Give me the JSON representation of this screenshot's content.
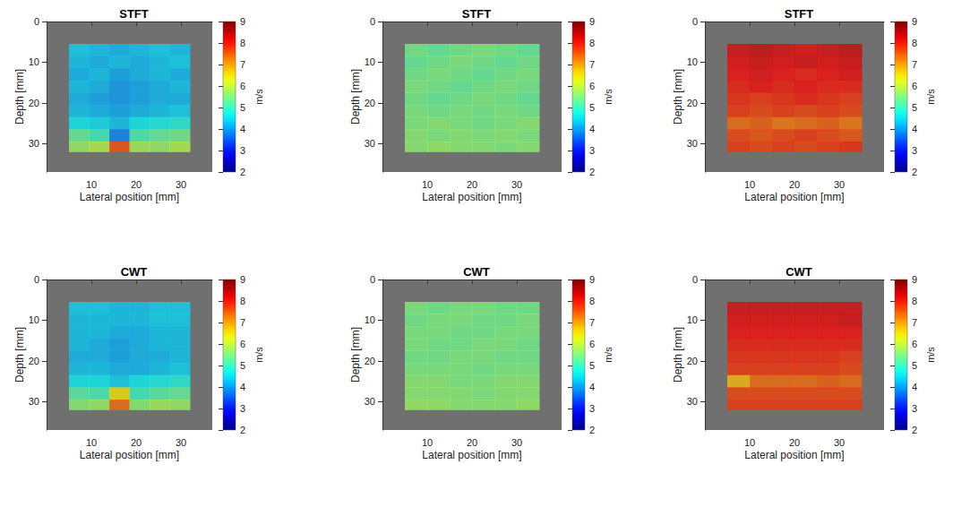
{
  "chart_data": [
    {
      "type": "heatmap",
      "title": "STFT",
      "xlabel": "Lateral position [mm]",
      "ylabel": "Depth [mm]",
      "xlim": [
        0,
        37
      ],
      "ylim": [
        0,
        37
      ],
      "xticks": [
        10,
        20,
        30
      ],
      "yticks": [
        0,
        10,
        20,
        30
      ],
      "x_edges": [
        5,
        9.5,
        14,
        18.5,
        23,
        27.5,
        32
      ],
      "y_edges": [
        5.5,
        8.5,
        11.5,
        14.5,
        17.5,
        20.5,
        23.5,
        26.5,
        29.5,
        32
      ],
      "cells": [
        [
          4.4,
          4.3,
          4.2,
          4.3,
          4.4,
          4.3
        ],
        [
          4.3,
          4.2,
          4.3,
          4.2,
          4.3,
          4.4
        ],
        [
          4.2,
          4.3,
          4.1,
          4.2,
          4.3,
          4.2
        ],
        [
          4.3,
          4.2,
          4.0,
          4.1,
          4.2,
          4.3
        ],
        [
          4.2,
          4.1,
          4.0,
          4.1,
          4.2,
          4.2
        ],
        [
          4.3,
          4.2,
          4.1,
          4.2,
          4.3,
          4.4
        ],
        [
          4.6,
          4.5,
          4.3,
          4.6,
          4.7,
          4.8
        ],
        [
          5.3,
          5.0,
          3.8,
          5.1,
          5.3,
          5.4
        ],
        [
          5.7,
          5.9,
          7.6,
          5.8,
          5.7,
          5.9
        ]
      ],
      "colorbar": {
        "range": [
          2,
          9
        ],
        "ticks": [
          2,
          3,
          4,
          5,
          6,
          7,
          8,
          9
        ],
        "label": "m/s"
      }
    },
    {
      "type": "heatmap",
      "title": "STFT",
      "xlabel": "Lateral position [mm]",
      "ylabel": "Depth [mm]",
      "xlim": [
        0,
        40
      ],
      "ylim": [
        0,
        37
      ],
      "xticks": [
        10,
        20,
        30
      ],
      "yticks": [
        0,
        10,
        20,
        30
      ],
      "x_edges": [
        5,
        10,
        15,
        20,
        25,
        30,
        35
      ],
      "y_edges": [
        5.5,
        8.5,
        11.5,
        14.5,
        17.5,
        20.5,
        23.5,
        26.5,
        29.5,
        32
      ],
      "cells": [
        [
          5.4,
          5.3,
          5.4,
          5.5,
          5.4,
          5.3
        ],
        [
          5.3,
          5.4,
          5.5,
          5.4,
          5.3,
          5.4
        ],
        [
          5.4,
          5.5,
          5.4,
          5.3,
          5.4,
          5.5
        ],
        [
          5.5,
          5.4,
          5.3,
          5.4,
          5.5,
          5.4
        ],
        [
          5.4,
          5.3,
          5.4,
          5.5,
          5.4,
          5.3
        ],
        [
          5.5,
          5.4,
          5.5,
          5.4,
          5.5,
          5.4
        ],
        [
          5.5,
          5.6,
          5.5,
          5.4,
          5.5,
          5.6
        ],
        [
          5.6,
          5.5,
          5.6,
          5.5,
          5.6,
          5.5
        ],
        [
          5.6,
          5.7,
          5.6,
          5.6,
          5.5,
          5.6
        ]
      ],
      "colorbar": {
        "range": [
          2,
          9
        ],
        "ticks": [
          2,
          3,
          4,
          5,
          6,
          7,
          8,
          9
        ],
        "label": "m/s"
      }
    },
    {
      "type": "heatmap",
      "title": "STFT",
      "xlabel": "Lateral position [mm]",
      "ylabel": "Depth [mm]",
      "xlim": [
        0,
        40
      ],
      "ylim": [
        0,
        37
      ],
      "xticks": [
        10,
        20,
        30
      ],
      "yticks": [
        0,
        10,
        20,
        30
      ],
      "x_edges": [
        5,
        10,
        15,
        20,
        25,
        30,
        35
      ],
      "y_edges": [
        5.5,
        8.5,
        11.5,
        14.5,
        17.5,
        20.5,
        23.5,
        26.5,
        29.5,
        32
      ],
      "cells": [
        [
          8.3,
          8.4,
          8.3,
          8.2,
          8.3,
          8.4
        ],
        [
          8.2,
          8.3,
          8.2,
          8.3,
          8.2,
          8.3
        ],
        [
          8.1,
          8.2,
          8.1,
          8.0,
          8.1,
          8.2
        ],
        [
          8.0,
          8.1,
          8.0,
          8.1,
          8.0,
          8.0
        ],
        [
          7.9,
          7.8,
          7.9,
          8.0,
          7.9,
          7.8
        ],
        [
          7.8,
          7.7,
          7.8,
          7.7,
          7.8,
          7.7
        ],
        [
          7.4,
          7.5,
          7.3,
          7.4,
          7.5,
          7.3
        ],
        [
          7.7,
          7.6,
          7.7,
          7.8,
          7.7,
          7.6
        ],
        [
          7.8,
          7.7,
          7.8,
          7.7,
          7.8,
          7.9
        ]
      ],
      "colorbar": {
        "range": [
          2,
          9
        ],
        "ticks": [
          2,
          3,
          4,
          5,
          6,
          7,
          8,
          9
        ],
        "label": "m/s"
      }
    },
    {
      "type": "heatmap",
      "title": "CWT",
      "xlabel": "Lateral position [mm]",
      "ylabel": "Depth [mm]",
      "xlim": [
        0,
        37
      ],
      "ylim": [
        0,
        37
      ],
      "xticks": [
        10,
        20,
        30
      ],
      "yticks": [
        0,
        10,
        20,
        30
      ],
      "x_edges": [
        5,
        9.5,
        14,
        18.5,
        23,
        27.5,
        32
      ],
      "y_edges": [
        5.5,
        8.5,
        11.5,
        14.5,
        17.5,
        20.5,
        23.5,
        26.5,
        29.5,
        32
      ],
      "cells": [
        [
          4.4,
          4.4,
          4.3,
          4.3,
          4.4,
          4.4
        ],
        [
          4.3,
          4.3,
          4.3,
          4.3,
          4.4,
          4.4
        ],
        [
          4.3,
          4.3,
          4.2,
          4.2,
          4.3,
          4.3
        ],
        [
          4.3,
          4.2,
          4.1,
          4.2,
          4.3,
          4.3
        ],
        [
          4.2,
          4.2,
          4.1,
          4.2,
          4.2,
          4.3
        ],
        [
          4.3,
          4.3,
          4.2,
          4.2,
          4.3,
          4.4
        ],
        [
          4.6,
          4.6,
          4.4,
          4.6,
          4.7,
          4.8
        ],
        [
          5.2,
          5.1,
          6.5,
          5.0,
          5.2,
          5.3
        ],
        [
          5.6,
          5.7,
          7.4,
          5.6,
          5.8,
          5.7
        ]
      ],
      "colorbar": {
        "range": [
          2,
          9
        ],
        "ticks": [
          2,
          3,
          4,
          5,
          6,
          7,
          8,
          9
        ],
        "label": "m/s"
      }
    },
    {
      "type": "heatmap",
      "title": "CWT",
      "xlabel": "Lateral position [mm]",
      "ylabel": "Depth [mm]",
      "xlim": [
        0,
        40
      ],
      "ylim": [
        0,
        37
      ],
      "xticks": [
        10,
        20,
        30
      ],
      "yticks": [
        0,
        10,
        20,
        30
      ],
      "x_edges": [
        5,
        10,
        15,
        20,
        25,
        30,
        35
      ],
      "y_edges": [
        5.5,
        8.5,
        11.5,
        14.5,
        17.5,
        20.5,
        23.5,
        26.5,
        29.5,
        32
      ],
      "cells": [
        [
          5.5,
          5.4,
          5.5,
          5.5,
          5.4,
          5.4
        ],
        [
          5.4,
          5.5,
          5.5,
          5.4,
          5.4,
          5.5
        ],
        [
          5.5,
          5.5,
          5.4,
          5.4,
          5.5,
          5.5
        ],
        [
          5.5,
          5.4,
          5.4,
          5.5,
          5.5,
          5.4
        ],
        [
          5.4,
          5.4,
          5.5,
          5.5,
          5.4,
          5.4
        ],
        [
          5.5,
          5.5,
          5.5,
          5.4,
          5.5,
          5.5
        ],
        [
          5.6,
          5.6,
          5.5,
          5.5,
          5.6,
          5.6
        ],
        [
          5.6,
          5.6,
          5.6,
          5.5,
          5.6,
          5.6
        ],
        [
          5.7,
          5.7,
          5.6,
          5.6,
          5.6,
          5.7
        ]
      ],
      "colorbar": {
        "range": [
          2,
          9
        ],
        "ticks": [
          2,
          3,
          4,
          5,
          6,
          7,
          8,
          9
        ],
        "label": "m/s"
      }
    },
    {
      "type": "heatmap",
      "title": "CWT",
      "xlabel": "Lateral position [mm]",
      "ylabel": "Depth [mm]",
      "xlim": [
        0,
        40
      ],
      "ylim": [
        0,
        37
      ],
      "xticks": [
        10,
        20,
        30
      ],
      "yticks": [
        0,
        10,
        20,
        30
      ],
      "x_edges": [
        5,
        10,
        15,
        20,
        25,
        30,
        35
      ],
      "y_edges": [
        5.5,
        8.5,
        11.5,
        14.5,
        17.5,
        20.5,
        23.5,
        26.5,
        29.5,
        32
      ],
      "cells": [
        [
          8.3,
          8.3,
          8.3,
          8.3,
          8.3,
          8.3
        ],
        [
          8.2,
          8.2,
          8.2,
          8.2,
          8.2,
          8.3
        ],
        [
          8.1,
          8.1,
          8.1,
          8.1,
          8.1,
          8.1
        ],
        [
          8.0,
          8.0,
          8.0,
          8.0,
          8.0,
          8.0
        ],
        [
          7.9,
          7.9,
          7.9,
          7.9,
          7.9,
          7.8
        ],
        [
          7.8,
          7.8,
          7.8,
          7.8,
          7.8,
          7.7
        ],
        [
          6.8,
          7.4,
          7.4,
          7.4,
          7.5,
          7.4
        ],
        [
          7.7,
          7.7,
          7.7,
          7.7,
          7.7,
          7.7
        ],
        [
          7.8,
          7.8,
          7.8,
          7.8,
          7.8,
          7.8
        ]
      ],
      "colorbar": {
        "range": [
          2,
          9
        ],
        "ticks": [
          2,
          3,
          4,
          5,
          6,
          7,
          8,
          9
        ],
        "label": "m/s"
      }
    }
  ]
}
